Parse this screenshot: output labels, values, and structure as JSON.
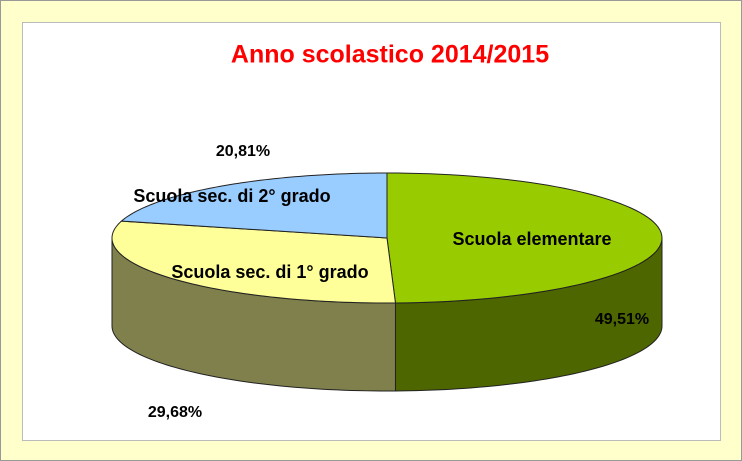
{
  "chart_data": {
    "type": "pie3d",
    "title": "Anno scolastico 2014/2015",
    "categories": [
      "Scuola elementare",
      "Scuola sec. di 1° grado",
      "Scuola sec. di 2° grado"
    ],
    "values": [
      49.51,
      29.68,
      20.81
    ],
    "value_labels": [
      "49,51%",
      "29,68%",
      "20,81%"
    ],
    "colors": [
      "#99cc00",
      "#ffff99",
      "#99ccff"
    ]
  }
}
